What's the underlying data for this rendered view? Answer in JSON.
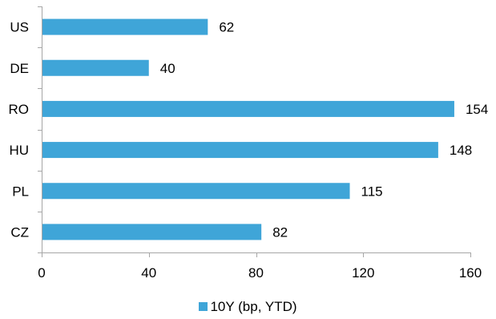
{
  "chart_data": {
    "type": "bar",
    "orientation": "horizontal",
    "categories": [
      "US",
      "DE",
      "RO",
      "HU",
      "PL",
      "CZ"
    ],
    "series": [
      {
        "name": "10Y (bp, YTD)",
        "values": [
          62,
          40,
          154,
          148,
          115,
          82
        ],
        "color": "#3fa5d8"
      }
    ],
    "value_labels": [
      "62",
      "40",
      "154",
      "148",
      "115",
      "82"
    ],
    "xlim": [
      0,
      160
    ],
    "x_ticks": [
      0,
      40,
      80,
      120,
      160
    ],
    "x_tick_labels": [
      "0",
      "40",
      "80",
      "120",
      "160"
    ],
    "grid": false,
    "legend_position": "bottom"
  },
  "colors": {
    "bar": "#3fa5d8",
    "axis": "#a6a6a6",
    "text": "#000000"
  }
}
